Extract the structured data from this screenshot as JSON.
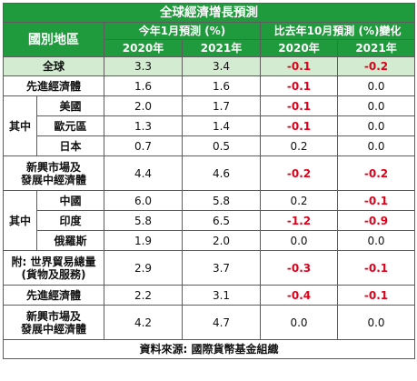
{
  "title": "全球經濟增長預測",
  "header": {
    "region_label": "國別地區",
    "group1": "今年1月預測 (%)",
    "group2": "比去年10月預測 (%)變化",
    "years": [
      "2020年",
      "2021年",
      "2020年",
      "2021年"
    ]
  },
  "sub_label": "其中",
  "rows": [
    {
      "label": "全球",
      "v": [
        "3.3",
        "3.4",
        "-0.1",
        "-0.2"
      ]
    },
    {
      "label": "先進經濟體",
      "v": [
        "1.6",
        "1.6",
        "-0.1",
        "0.0"
      ]
    },
    {
      "label": "美國",
      "v": [
        "2.0",
        "1.7",
        "-0.1",
        "0.0"
      ]
    },
    {
      "label": "歐元區",
      "v": [
        "1.3",
        "1.4",
        "-0.1",
        "0.0"
      ]
    },
    {
      "label": "日本",
      "v": [
        "0.7",
        "0.5",
        "0.2",
        "0.0"
      ]
    },
    {
      "label": "新興市場及\n發展中經濟體",
      "v": [
        "4.4",
        "4.6",
        "-0.2",
        "-0.2"
      ]
    },
    {
      "label": "中國",
      "v": [
        "6.0",
        "5.8",
        "0.2",
        "-0.1"
      ]
    },
    {
      "label": "印度",
      "v": [
        "5.8",
        "6.5",
        "-1.2",
        "-0.9"
      ]
    },
    {
      "label": "俄羅斯",
      "v": [
        "1.9",
        "2.0",
        "0.0",
        "0.0"
      ]
    },
    {
      "label": "附: 世界貿易總量\n(貨物及服務)",
      "v": [
        "2.9",
        "3.7",
        "-0.3",
        "-0.1"
      ]
    },
    {
      "label": "先進經濟體",
      "v": [
        "2.2",
        "3.1",
        "-0.4",
        "-0.1"
      ]
    },
    {
      "label": "新興市場及\n發展中經濟體",
      "v": [
        "4.2",
        "4.7",
        "0.0",
        "0.0"
      ]
    }
  ],
  "source": "資料來源: 國際貨幣基金組織",
  "colors": {
    "header_green": "#1f9a3c",
    "light_green": "#d3ebd1",
    "negative_red": "#e0001a"
  }
}
